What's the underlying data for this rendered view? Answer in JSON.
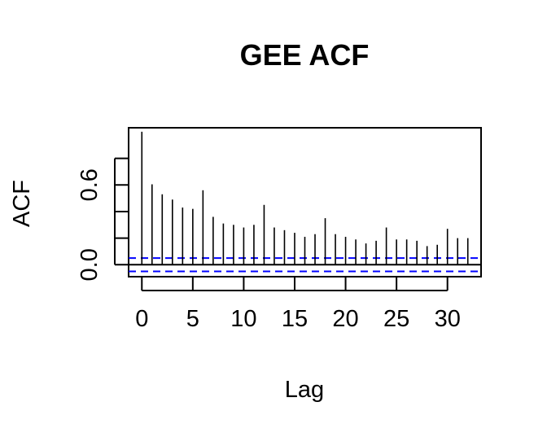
{
  "chart_data": {
    "type": "bar",
    "title": "GEE ACF",
    "xlabel": "Lag",
    "ylabel": "ACF",
    "x_ticks": [
      0,
      5,
      10,
      15,
      20,
      25,
      30
    ],
    "y_ticks": [
      0.0,
      0.2,
      0.4,
      0.6,
      0.8
    ],
    "y_tick_labels": [
      {
        "value": 0.0,
        "label": "0.0"
      },
      {
        "value": 0.6,
        "label": "0.6"
      }
    ],
    "xlim": [
      -1.3,
      33.3
    ],
    "ylim": [
      -0.09,
      1.03
    ],
    "lags": [
      0,
      1,
      2,
      3,
      4,
      5,
      6,
      7,
      8,
      9,
      10,
      11,
      12,
      13,
      14,
      15,
      16,
      17,
      18,
      19,
      20,
      21,
      22,
      23,
      24,
      25,
      26,
      27,
      28,
      29,
      30,
      31,
      32
    ],
    "values": [
      1.0,
      0.605,
      0.53,
      0.49,
      0.43,
      0.42,
      0.56,
      0.36,
      0.31,
      0.3,
      0.28,
      0.3,
      0.45,
      0.28,
      0.26,
      0.24,
      0.21,
      0.23,
      0.35,
      0.23,
      0.21,
      0.19,
      0.16,
      0.18,
      0.28,
      0.19,
      0.19,
      0.18,
      0.14,
      0.15,
      0.27,
      0.2,
      0.2
    ],
    "confidence_band": [
      -0.05,
      0.05
    ],
    "colors": {
      "bars": "#000000",
      "ci": "#0000ff",
      "axis": "#000000"
    },
    "grid": false
  }
}
